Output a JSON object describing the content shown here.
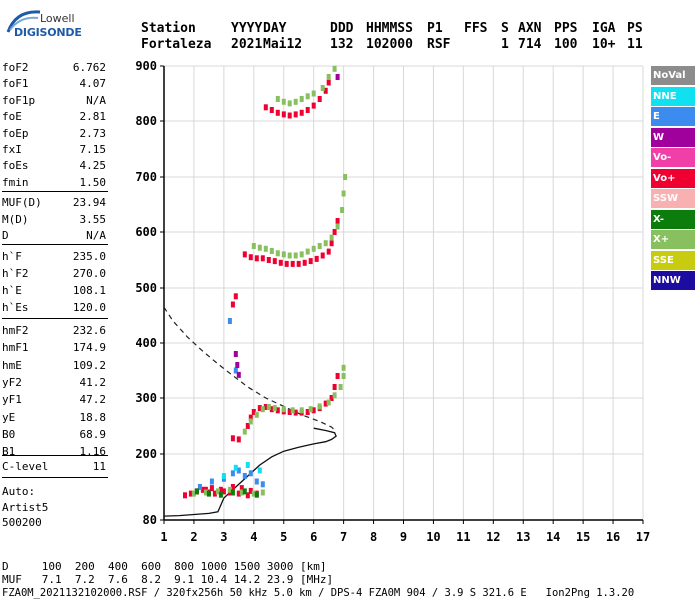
{
  "logo": {
    "line1": "Lowell",
    "line2": "DIGISONDE"
  },
  "header": {
    "labels": [
      "Station",
      "YYYY",
      "DAY",
      "DDD",
      "HHMMSS",
      "P1",
      "FFS",
      "S",
      "AXN",
      "PPS",
      "IGA",
      "PS"
    ],
    "values": [
      "Fortaleza",
      "2021",
      "Mai12",
      "132",
      "102000",
      "RSF",
      "",
      "1",
      "714",
      "100",
      "10+",
      "11"
    ]
  },
  "params_group1": [
    {
      "name": "foF2",
      "value": "6.762"
    },
    {
      "name": "foF1",
      "value": "4.07"
    },
    {
      "name": "foF1p",
      "value": "N/A"
    },
    {
      "name": "foE",
      "value": "2.81"
    },
    {
      "name": "foEp",
      "value": "2.73"
    },
    {
      "name": "fxI",
      "value": "7.15"
    },
    {
      "name": "foEs",
      "value": "4.25"
    },
    {
      "name": "fmin",
      "value": "1.50"
    }
  ],
  "params_group2": [
    {
      "name": "MUF(D)",
      "value": "23.94"
    },
    {
      "name": "M(D)",
      "value": "3.55"
    },
    {
      "name": "D",
      "value": "N/A"
    }
  ],
  "params_group3": [
    {
      "name": "h`F",
      "value": "235.0"
    },
    {
      "name": "h`F2",
      "value": "270.0"
    },
    {
      "name": "h`E",
      "value": "108.1"
    },
    {
      "name": "h`Es",
      "value": "120.0"
    }
  ],
  "params_group4": [
    {
      "name": "hmF2",
      "value": "232.6"
    },
    {
      "name": "hmF1",
      "value": "174.9"
    },
    {
      "name": "hmE",
      "value": "109.2"
    },
    {
      "name": "yF2",
      "value": "41.2"
    },
    {
      "name": "yF1",
      "value": "47.2"
    },
    {
      "name": "yE",
      "value": "18.8"
    },
    {
      "name": "B0",
      "value": "68.9"
    },
    {
      "name": "B1",
      "value": "1.16"
    }
  ],
  "params_group5": [
    {
      "name": "C-level",
      "value": "11"
    }
  ],
  "auto": {
    "line1": "Auto:",
    "line2": "Artist5",
    "line3": "500200"
  },
  "legend": [
    {
      "label": "NoVal",
      "color": "#8c8c8c"
    },
    {
      "label": "NNE",
      "color": "#10e0f0"
    },
    {
      "label": "E",
      "color": "#3c8cf0"
    },
    {
      "label": "W",
      "color": "#a0009c"
    },
    {
      "label": "Vo-",
      "color": "#f040a8"
    },
    {
      "label": "Vo+",
      "color": "#f00030"
    },
    {
      "label": "SSW",
      "color": "#f8b0b0"
    },
    {
      "label": "X-",
      "color": "#0c7c0c"
    },
    {
      "label": "X+",
      "color": "#88c060"
    },
    {
      "label": "SSE",
      "color": "#c8cc10"
    },
    {
      "label": "NNW",
      "color": "#1c0ca0"
    }
  ],
  "bottom": {
    "d_line": "D     100  200  400  600  800 1000 1500 3000 [km]",
    "muf_line": "MUF   7.1  7.2  7.6  8.2  9.1 10.4 14.2 23.9 [MHz]",
    "footer": "FZA0M_2021132102000.RSF / 320fx256h 50 kHz 5.0 km / DPS-4 FZA0M 904 / 3.9 S 321.6 E   Ion2Png 1.3.20"
  },
  "chart_data": {
    "type": "scatter",
    "xlim": [
      1,
      17
    ],
    "ylim": [
      80,
      900
    ],
    "x_ticks": [
      1,
      2,
      3,
      4,
      5,
      6,
      7,
      8,
      9,
      10,
      11,
      12,
      13,
      14,
      15,
      16,
      17
    ],
    "y_ticks": [
      80,
      200,
      300,
      400,
      500,
      600,
      700,
      800,
      900
    ],
    "grid": true,
    "legend_position": "right",
    "profile_solid": {
      "x": [
        1.0,
        1.5,
        2.0,
        2.5,
        2.8,
        3.0,
        3.4,
        3.8,
        4.2,
        4.6,
        5.0,
        5.5,
        6.0,
        6.4,
        6.6,
        6.75,
        6.7,
        6.4,
        6.0
      ],
      "y": [
        87,
        88,
        90,
        92,
        95,
        120,
        140,
        160,
        180,
        195,
        205,
        212,
        218,
        222,
        226,
        232,
        238,
        242,
        246
      ]
    },
    "profile_dashed": {
      "x": [
        1.0,
        1.3,
        1.8,
        2.3,
        2.8,
        3.2,
        3.8,
        4.4,
        5.0,
        5.6,
        6.2,
        6.6,
        6.75
      ],
      "y": [
        465,
        440,
        410,
        385,
        362,
        345,
        320,
        300,
        285,
        270,
        258,
        248,
        240
      ]
    },
    "series": [
      {
        "name": "Vo+",
        "points": [
          [
            1.7,
            125
          ],
          [
            1.9,
            128
          ],
          [
            2.1,
            132
          ],
          [
            2.3,
            135
          ],
          [
            2.5,
            130
          ],
          [
            2.7,
            128
          ],
          [
            3.0,
            132
          ],
          [
            3.3,
            140
          ],
          [
            3.6,
            138
          ],
          [
            3.9,
            133
          ],
          [
            4.1,
            128
          ],
          [
            2.4,
            135
          ],
          [
            2.6,
            138
          ],
          [
            2.9,
            135
          ],
          [
            3.2,
            130
          ],
          [
            3.5,
            128
          ],
          [
            3.8,
            125
          ],
          [
            3.3,
            228
          ],
          [
            3.5,
            226
          ],
          [
            3.8,
            250
          ],
          [
            3.9,
            265
          ],
          [
            4.0,
            275
          ],
          [
            4.2,
            282
          ],
          [
            4.4,
            284
          ],
          [
            4.6,
            280
          ],
          [
            4.8,
            278
          ],
          [
            5.0,
            276
          ],
          [
            5.2,
            275
          ],
          [
            5.4,
            274
          ],
          [
            5.6,
            274
          ],
          [
            5.8,
            275
          ],
          [
            6.0,
            278
          ],
          [
            6.2,
            282
          ],
          [
            6.4,
            290
          ],
          [
            6.6,
            300
          ],
          [
            6.7,
            320
          ],
          [
            6.8,
            340
          ],
          [
            3.7,
            560
          ],
          [
            3.9,
            555
          ],
          [
            4.1,
            553
          ],
          [
            4.3,
            553
          ],
          [
            4.5,
            550
          ],
          [
            4.7,
            548
          ],
          [
            4.9,
            545
          ],
          [
            5.1,
            543
          ],
          [
            5.3,
            543
          ],
          [
            5.5,
            543
          ],
          [
            5.7,
            545
          ],
          [
            5.9,
            548
          ],
          [
            6.1,
            552
          ],
          [
            6.3,
            558
          ],
          [
            6.5,
            565
          ],
          [
            6.6,
            580
          ],
          [
            6.7,
            600
          ],
          [
            6.8,
            620
          ],
          [
            3.3,
            470
          ],
          [
            3.4,
            485
          ],
          [
            4.4,
            825
          ],
          [
            4.6,
            820
          ],
          [
            4.8,
            815
          ],
          [
            5.0,
            812
          ],
          [
            5.2,
            810
          ],
          [
            5.4,
            812
          ],
          [
            5.6,
            815
          ],
          [
            5.8,
            820
          ],
          [
            6.0,
            828
          ],
          [
            6.2,
            840
          ],
          [
            6.4,
            855
          ],
          [
            6.5,
            870
          ]
        ]
      },
      {
        "name": "X+",
        "points": [
          [
            2.0,
            128
          ],
          [
            2.4,
            130
          ],
          [
            2.8,
            132
          ],
          [
            3.2,
            135
          ],
          [
            3.6,
            130
          ],
          [
            4.0,
            128
          ],
          [
            4.3,
            130
          ],
          [
            3.7,
            240
          ],
          [
            3.9,
            258
          ],
          [
            4.1,
            270
          ],
          [
            4.3,
            280
          ],
          [
            4.5,
            284
          ],
          [
            4.7,
            282
          ],
          [
            5.0,
            280
          ],
          [
            5.3,
            278
          ],
          [
            5.6,
            278
          ],
          [
            5.9,
            280
          ],
          [
            6.2,
            285
          ],
          [
            6.5,
            292
          ],
          [
            6.7,
            305
          ],
          [
            6.9,
            320
          ],
          [
            7.0,
            340
          ],
          [
            7.0,
            355
          ],
          [
            4.0,
            575
          ],
          [
            4.2,
            572
          ],
          [
            4.4,
            570
          ],
          [
            4.6,
            566
          ],
          [
            4.8,
            562
          ],
          [
            5.0,
            560
          ],
          [
            5.2,
            558
          ],
          [
            5.4,
            558
          ],
          [
            5.6,
            560
          ],
          [
            5.8,
            565
          ],
          [
            6.0,
            570
          ],
          [
            6.2,
            575
          ],
          [
            6.4,
            580
          ],
          [
            6.6,
            590
          ],
          [
            6.8,
            610
          ],
          [
            6.95,
            640
          ],
          [
            7.0,
            670
          ],
          [
            7.05,
            700
          ],
          [
            4.8,
            840
          ],
          [
            5.0,
            835
          ],
          [
            5.2,
            832
          ],
          [
            5.4,
            835
          ],
          [
            5.6,
            840
          ],
          [
            5.8,
            845
          ],
          [
            6.0,
            850
          ],
          [
            6.3,
            860
          ],
          [
            6.5,
            880
          ],
          [
            6.7,
            895
          ]
        ]
      },
      {
        "name": "E",
        "points": [
          [
            2.2,
            140
          ],
          [
            2.6,
            150
          ],
          [
            3.0,
            155
          ],
          [
            3.3,
            165
          ],
          [
            3.5,
            170
          ],
          [
            3.7,
            160
          ],
          [
            3.9,
            165
          ],
          [
            4.1,
            150
          ],
          [
            4.3,
            145
          ],
          [
            3.2,
            440
          ],
          [
            3.4,
            350
          ]
        ]
      },
      {
        "name": "X-",
        "points": [
          [
            2.1,
            132
          ],
          [
            2.5,
            128
          ],
          [
            2.9,
            126
          ],
          [
            3.3,
            130
          ],
          [
            3.7,
            132
          ],
          [
            4.1,
            126
          ]
        ]
      },
      {
        "name": "W",
        "points": [
          [
            3.4,
            380
          ],
          [
            3.45,
            360
          ],
          [
            3.5,
            342
          ],
          [
            6.8,
            880
          ]
        ]
      },
      {
        "name": "NNE",
        "points": [
          [
            3.0,
            160
          ],
          [
            3.4,
            175
          ],
          [
            3.8,
            180
          ],
          [
            4.2,
            170
          ]
        ]
      }
    ]
  }
}
